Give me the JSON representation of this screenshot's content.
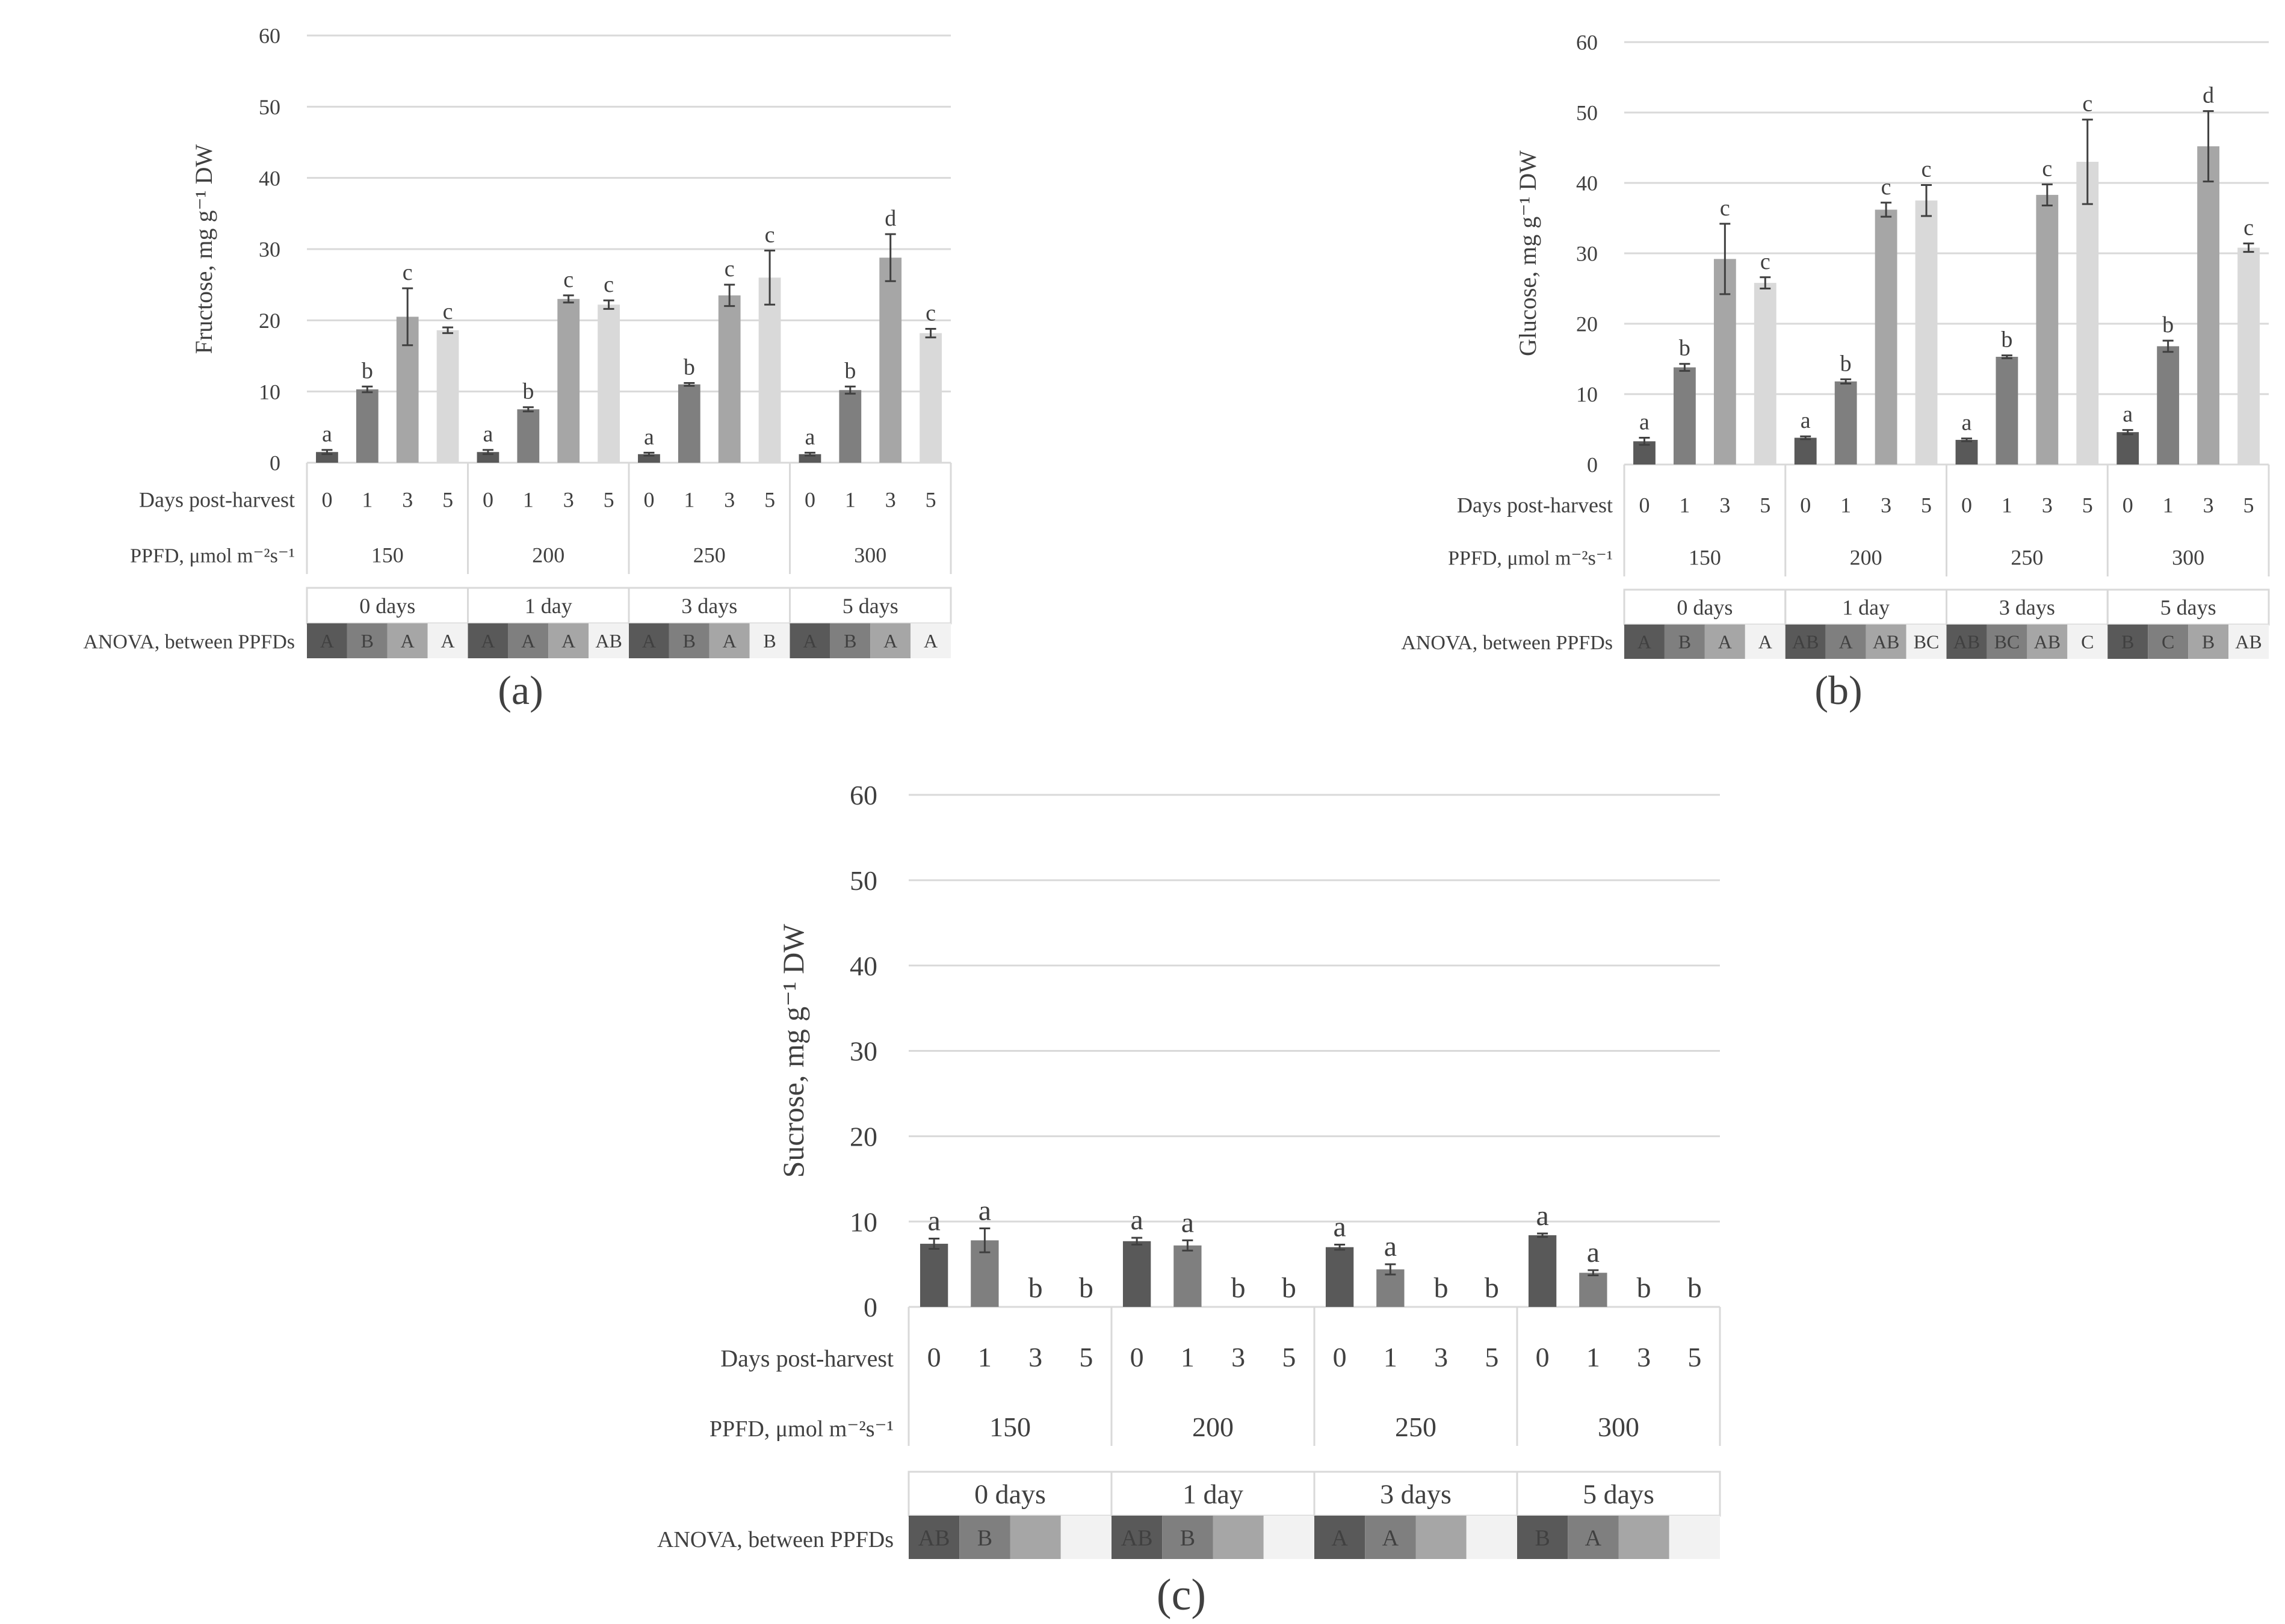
{
  "chart_data": [
    {
      "panel_label": "(a)",
      "panel_letter": "a",
      "type": "bar",
      "ylabel": "Fructose, mg g⁻¹ DW",
      "ylim": [
        0,
        60
      ],
      "yticks": [
        "0",
        "10",
        "20",
        "30",
        "40",
        "50",
        "60"
      ],
      "days_row_label": "Days post-harvest",
      "ppfd_row_label": "PPFD, μmol m⁻²s⁻¹",
      "anova_label": "ANOVA, between PPFDs",
      "groups": [
        {
          "ppfd": "150",
          "anova_header": "0 days",
          "days": [
            "0",
            "1",
            "3",
            "5"
          ],
          "values": [
            1.5,
            10.3,
            20.5,
            18.6
          ],
          "errors": [
            0.3,
            0.4,
            4.0,
            0.4
          ],
          "letters": [
            "a",
            "b",
            "c",
            "c"
          ],
          "anova": [
            "A",
            "B",
            "A",
            "A"
          ]
        },
        {
          "ppfd": "200",
          "anova_header": "1 day",
          "days": [
            "0",
            "1",
            "3",
            "5"
          ],
          "values": [
            1.5,
            7.5,
            23.0,
            22.2
          ],
          "errors": [
            0.3,
            0.3,
            0.5,
            0.6
          ],
          "letters": [
            "a",
            "b",
            "c",
            "c"
          ],
          "anova": [
            "A",
            "A",
            "A",
            "AB"
          ]
        },
        {
          "ppfd": "250",
          "anova_header": "3 days",
          "days": [
            "0",
            "1",
            "3",
            "5"
          ],
          "values": [
            1.2,
            11.0,
            23.5,
            26.0
          ],
          "errors": [
            0.2,
            0.2,
            1.5,
            3.8
          ],
          "letters": [
            "a",
            "b",
            "c",
            "c"
          ],
          "anova": [
            "A",
            "B",
            "A",
            "B"
          ]
        },
        {
          "ppfd": "300",
          "anova_header": "5 days",
          "days": [
            "0",
            "1",
            "3",
            "5"
          ],
          "values": [
            1.2,
            10.2,
            28.8,
            18.2
          ],
          "errors": [
            0.2,
            0.5,
            3.3,
            0.6
          ],
          "letters": [
            "a",
            "b",
            "d",
            "c"
          ],
          "anova": [
            "A",
            "B",
            "A",
            "A"
          ]
        }
      ]
    },
    {
      "panel_label": "(b)",
      "panel_letter": "b",
      "type": "bar",
      "ylabel": "Glucose, mg g⁻¹ DW",
      "ylim": [
        0,
        60
      ],
      "yticks": [
        "0",
        "10",
        "20",
        "30",
        "40",
        "50",
        "60"
      ],
      "days_row_label": "Days post-harvest",
      "ppfd_row_label": "PPFD, μmol m⁻²s⁻¹",
      "anova_label": "ANOVA, between PPFDs",
      "groups": [
        {
          "ppfd": "150",
          "anova_header": "0 days",
          "days": [
            "0",
            "1",
            "3",
            "5"
          ],
          "values": [
            3.3,
            13.8,
            29.2,
            25.8
          ],
          "errors": [
            0.5,
            0.5,
            5.0,
            0.8
          ],
          "letters": [
            "a",
            "b",
            "c",
            "c"
          ],
          "anova": [
            "A",
            "B",
            "A",
            "A"
          ]
        },
        {
          "ppfd": "200",
          "anova_header": "1 day",
          "days": [
            "0",
            "1",
            "3",
            "5"
          ],
          "values": [
            3.8,
            11.8,
            36.2,
            37.5
          ],
          "errors": [
            0.2,
            0.3,
            1.0,
            2.2
          ],
          "letters": [
            "a",
            "b",
            "c",
            "c"
          ],
          "anova": [
            "AB",
            "A",
            "AB",
            "BC"
          ]
        },
        {
          "ppfd": "250",
          "anova_header": "3 days",
          "days": [
            "0",
            "1",
            "3",
            "5"
          ],
          "values": [
            3.5,
            15.3,
            38.3,
            43.0
          ],
          "errors": [
            0.2,
            0.2,
            1.5,
            6.0
          ],
          "letters": [
            "a",
            "b",
            "c",
            "c"
          ],
          "anova": [
            "AB",
            "BC",
            "AB",
            "C"
          ]
        },
        {
          "ppfd": "300",
          "anova_header": "5 days",
          "days": [
            "0",
            "1",
            "3",
            "5"
          ],
          "values": [
            4.6,
            16.8,
            45.2,
            30.8
          ],
          "errors": [
            0.3,
            0.8,
            5.0,
            0.6
          ],
          "letters": [
            "a",
            "b",
            "d",
            "c"
          ],
          "anova": [
            "B",
            "C",
            "B",
            "AB"
          ]
        }
      ]
    },
    {
      "panel_label": "(c)",
      "panel_letter": "c",
      "type": "bar",
      "ylabel": "Sucrose, mg g⁻¹ DW",
      "ylim": [
        0,
        60
      ],
      "yticks": [
        "0",
        "10",
        "20",
        "30",
        "40",
        "50",
        "60"
      ],
      "days_row_label": "Days post-harvest",
      "ppfd_row_label": "PPFD, μmol m⁻²s⁻¹",
      "anova_label": "ANOVA, between PPFDs",
      "groups": [
        {
          "ppfd": "150",
          "anova_header": "0 days",
          "days": [
            "0",
            "1",
            "3",
            "5"
          ],
          "values": [
            7.4,
            7.8,
            0,
            0
          ],
          "errors": [
            0.6,
            1.4,
            0,
            0
          ],
          "letters": [
            "a",
            "a",
            "b",
            "b"
          ],
          "anova": [
            "AB",
            "B",
            "",
            ""
          ]
        },
        {
          "ppfd": "200",
          "anova_header": "1 day",
          "days": [
            "0",
            "1",
            "3",
            "5"
          ],
          "values": [
            7.7,
            7.2,
            0,
            0
          ],
          "errors": [
            0.4,
            0.6,
            0,
            0
          ],
          "letters": [
            "a",
            "a",
            "b",
            "b"
          ],
          "anova": [
            "AB",
            "B",
            "",
            ""
          ]
        },
        {
          "ppfd": "250",
          "anova_header": "3 days",
          "days": [
            "0",
            "1",
            "3",
            "5"
          ],
          "values": [
            7.0,
            4.4,
            0,
            0
          ],
          "errors": [
            0.3,
            0.6,
            0,
            0
          ],
          "letters": [
            "a",
            "a",
            "b",
            "b"
          ],
          "anova": [
            "A",
            "A",
            "",
            ""
          ]
        },
        {
          "ppfd": "300",
          "anova_header": "5 days",
          "days": [
            "0",
            "1",
            "3",
            "5"
          ],
          "values": [
            8.4,
            4.0,
            0,
            0
          ],
          "errors": [
            0.2,
            0.3,
            0,
            0
          ],
          "letters": [
            "a",
            "a",
            "b",
            "b"
          ],
          "anova": [
            "B",
            "A",
            "",
            ""
          ]
        }
      ]
    }
  ],
  "colors": {
    "bar_day0": "#595959",
    "bar_day1": "#7f7f7f",
    "bar_day3": "#a6a6a6",
    "bar_day5": "#d9d9d9",
    "anova_cell_0": "#595959",
    "anova_cell_1": "#7f7f7f",
    "anova_cell_2": "#a6a6a6",
    "anova_cell_3": "#f2f2f2",
    "gridline": "#d9d9d9",
    "text": "#404040"
  }
}
